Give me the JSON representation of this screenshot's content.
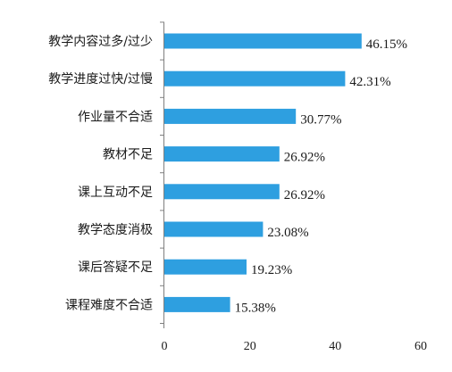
{
  "chart_data": {
    "type": "bar",
    "orientation": "horizontal",
    "categories": [
      "教学内容过多/过少",
      "教学进度过快/过慢",
      "作业量不合适",
      "教材不足",
      "课上互动不足",
      "教学态度消极",
      "课后答疑不足",
      "课程难度不合适"
    ],
    "values": [
      46.15,
      42.31,
      30.77,
      26.92,
      26.92,
      23.08,
      19.23,
      15.38
    ],
    "value_labels": [
      "46.15%",
      "42.31%",
      "30.77%",
      "26.92%",
      "26.92%",
      "23.08%",
      "19.23%",
      "15.38%"
    ],
    "xlim": [
      0,
      60
    ],
    "xticks": [
      "0",
      "20",
      "40",
      "60"
    ],
    "title": "",
    "xlabel": "",
    "ylabel": "",
    "grid": false,
    "bar_color": "#2e9fe0",
    "axis_color": "#7f7f7f"
  }
}
